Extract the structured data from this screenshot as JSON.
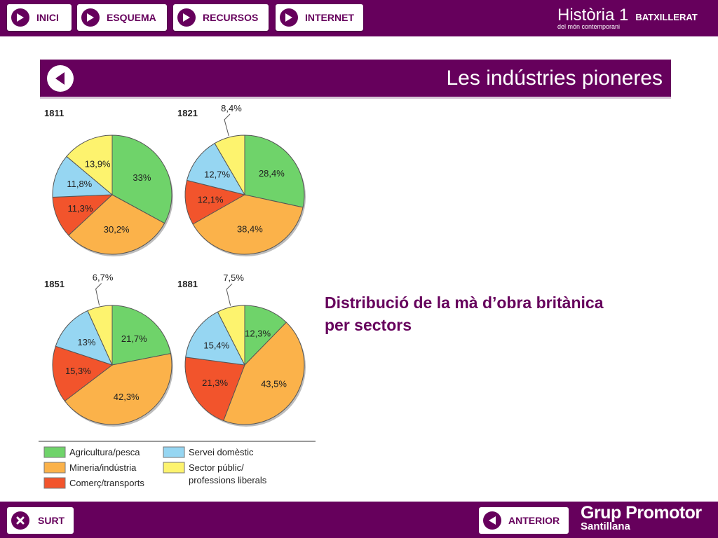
{
  "nav": {
    "inici": "INICI",
    "esquema": "ESQUEMA",
    "recursos": "RECURSOS",
    "internet": "INTERNET"
  },
  "brand": {
    "title": "Història 1",
    "level": "BATXILLERAT",
    "subtitle": "del món contemporani"
  },
  "page": {
    "title": "Les indústries pioneres",
    "caption_line1": "Distribució de la mà d’obra britànica",
    "caption_line2": "per sectors"
  },
  "footer": {
    "surt": "SURT",
    "anterior": "ANTERIOR",
    "logo_line1": "Grup Promotor",
    "logo_line2": "Santillana"
  },
  "colors": {
    "brand": "#66005c",
    "agricultura": "#6fd36a",
    "mineria": "#fbb24a",
    "comerc": "#f2542c",
    "servei": "#96d6f2",
    "sector_public": "#fdf36e"
  },
  "chart_data": {
    "type": "pie",
    "categories": [
      "Agricultura/pesca",
      "Mineria/indústria",
      "Comerç/transports",
      "Servei domèstic",
      "Sector públic/ professions liberals"
    ],
    "legend": [
      {
        "key": "agricultura",
        "label": "Agricultura/pesca"
      },
      {
        "key": "mineria",
        "label": "Mineria/indústria"
      },
      {
        "key": "comerc",
        "label": "Comerç/transports"
      },
      {
        "key": "servei",
        "label": "Servei domèstic"
      },
      {
        "key": "sector_public",
        "label_line1": "Sector públic/",
        "label_line2": "professions liberals"
      }
    ],
    "legend_position": "bottom",
    "charts": [
      {
        "year": "1811",
        "values": [
          33,
          30.2,
          11.3,
          11.8,
          13.9
        ],
        "labels": [
          "33%",
          "30,2%",
          "11,3%",
          "11,8%",
          "13,9%"
        ]
      },
      {
        "year": "1821",
        "values": [
          28.4,
          38.4,
          12.1,
          12.7,
          8.4
        ],
        "labels": [
          "28,4%",
          "38,4%",
          "12,1%",
          "12,7%",
          "8,4%"
        ]
      },
      {
        "year": "1851",
        "values": [
          21.7,
          42.3,
          15.3,
          13,
          6.7
        ],
        "labels": [
          "21,7%",
          "42,3%",
          "15,3%",
          "13%",
          "6,7%"
        ]
      },
      {
        "year": "1881",
        "values": [
          12.3,
          43.5,
          21.3,
          15.4,
          7.5
        ],
        "labels": [
          "12,3%",
          "43,5%",
          "21,3%",
          "15,4%",
          "7,5%"
        ]
      }
    ]
  }
}
